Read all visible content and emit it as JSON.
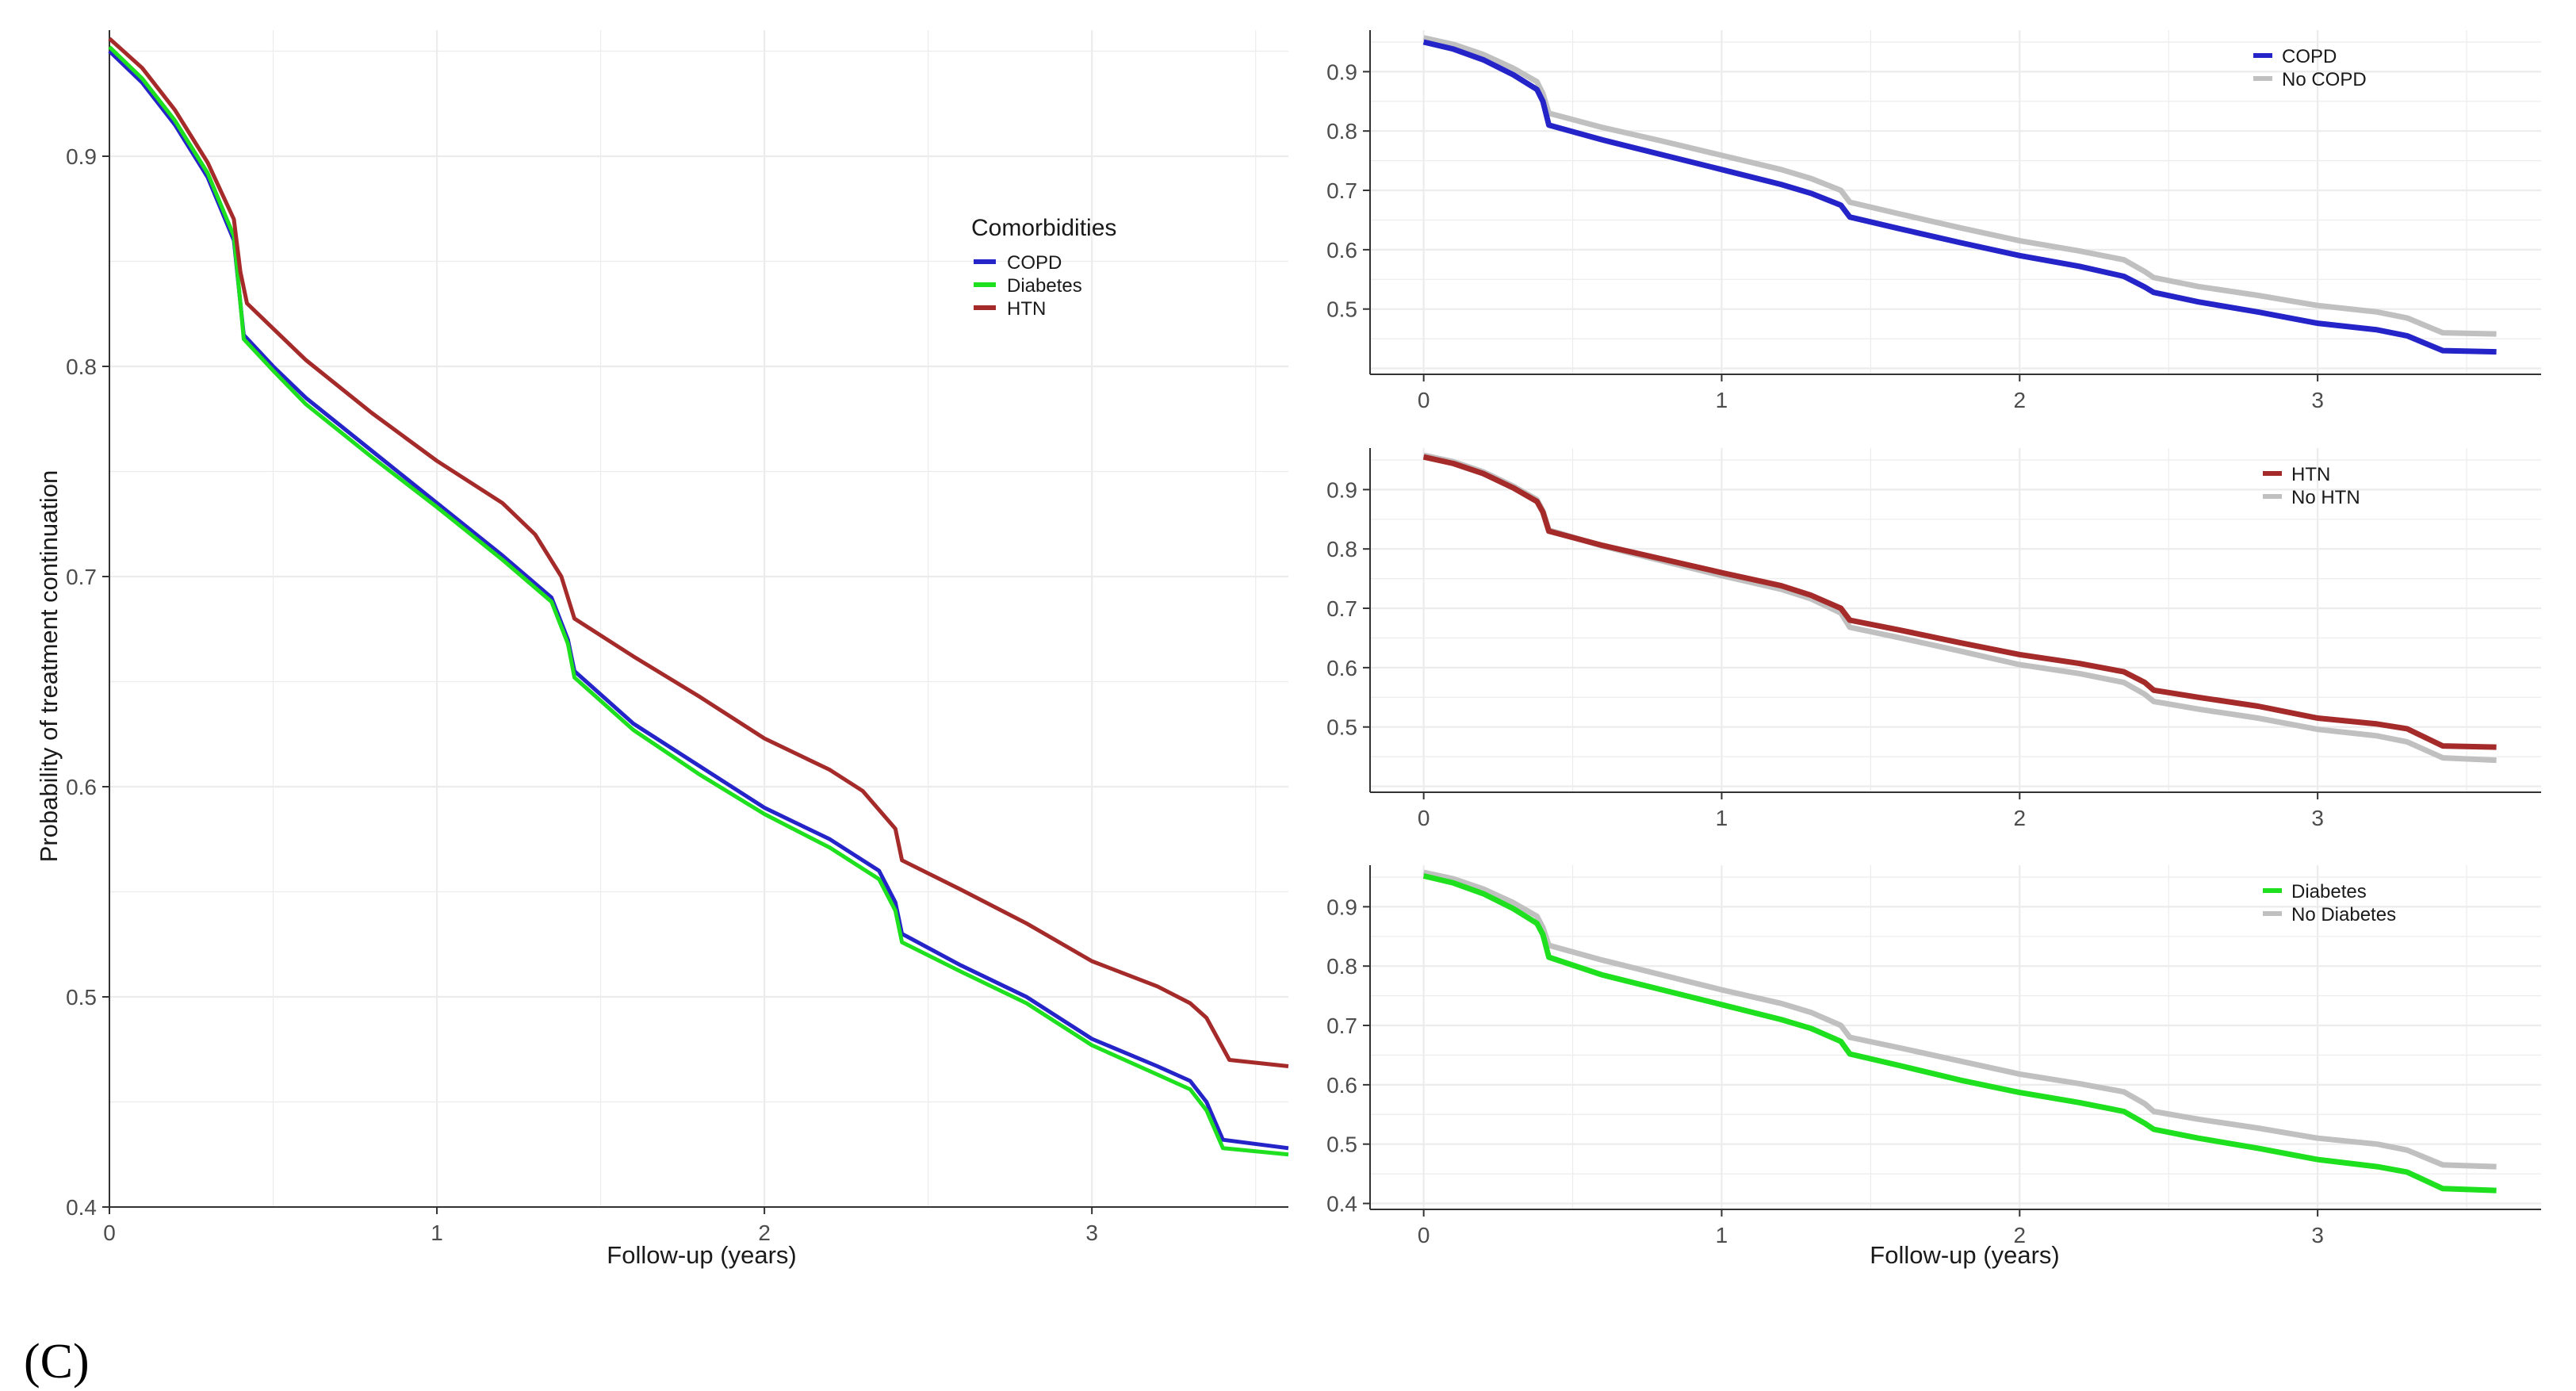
{
  "figure_label": "(C)",
  "colors": {
    "COPD": "#2424c8",
    "Diabetes": "#1fe01f",
    "HTN": "#a52a2a",
    "reference": "#c0c0c0",
    "grid": "#ececec",
    "axis": "#333333"
  },
  "chart_data": [
    {
      "type": "line",
      "panel": "main",
      "title": "",
      "xlabel": "Follow-up (years)",
      "ylabel": "Probability of treatment continuation",
      "xlim": [
        0,
        3.6
      ],
      "ylim": [
        0.4,
        0.96
      ],
      "xticks": [
        0,
        1,
        2,
        3
      ],
      "yticks": [
        0.4,
        0.5,
        0.6,
        0.7,
        0.8,
        0.9
      ],
      "grid": true,
      "legend_title": "Comorbidities",
      "legend_position": "top-right",
      "series": [
        {
          "name": "COPD",
          "color_key": "COPD",
          "x": [
            0,
            0.1,
            0.2,
            0.3,
            0.38,
            0.4,
            0.41,
            0.5,
            0.6,
            0.8,
            1.0,
            1.2,
            1.35,
            1.4,
            1.42,
            1.6,
            1.8,
            2.0,
            2.2,
            2.35,
            2.4,
            2.42,
            2.6,
            2.8,
            3.0,
            3.2,
            3.3,
            3.35,
            3.4,
            3.6
          ],
          "y": [
            0.95,
            0.935,
            0.915,
            0.89,
            0.86,
            0.83,
            0.815,
            0.8,
            0.785,
            0.76,
            0.735,
            0.71,
            0.69,
            0.67,
            0.655,
            0.63,
            0.61,
            0.59,
            0.575,
            0.56,
            0.545,
            0.53,
            0.515,
            0.5,
            0.48,
            0.467,
            0.46,
            0.45,
            0.432,
            0.428
          ]
        },
        {
          "name": "Diabetes",
          "color_key": "Diabetes",
          "x": [
            0,
            0.1,
            0.2,
            0.3,
            0.38,
            0.4,
            0.41,
            0.5,
            0.6,
            0.8,
            1.0,
            1.2,
            1.35,
            1.4,
            1.42,
            1.6,
            1.8,
            2.0,
            2.2,
            2.35,
            2.4,
            2.42,
            2.6,
            2.8,
            3.0,
            3.2,
            3.3,
            3.35,
            3.4,
            3.6
          ],
          "y": [
            0.952,
            0.937,
            0.917,
            0.892,
            0.862,
            0.83,
            0.813,
            0.798,
            0.782,
            0.757,
            0.733,
            0.708,
            0.688,
            0.668,
            0.652,
            0.627,
            0.606,
            0.587,
            0.571,
            0.556,
            0.541,
            0.526,
            0.512,
            0.497,
            0.477,
            0.463,
            0.456,
            0.446,
            0.428,
            0.425
          ]
        },
        {
          "name": "HTN",
          "color_key": "HTN",
          "x": [
            0,
            0.1,
            0.2,
            0.3,
            0.38,
            0.4,
            0.42,
            0.5,
            0.6,
            0.8,
            1.0,
            1.2,
            1.3,
            1.38,
            1.42,
            1.6,
            1.8,
            2.0,
            2.2,
            2.3,
            2.4,
            2.42,
            2.6,
            2.8,
            3.0,
            3.2,
            3.3,
            3.35,
            3.42,
            3.6
          ],
          "y": [
            0.956,
            0.942,
            0.922,
            0.897,
            0.87,
            0.845,
            0.83,
            0.818,
            0.803,
            0.778,
            0.755,
            0.735,
            0.72,
            0.7,
            0.68,
            0.662,
            0.643,
            0.623,
            0.608,
            0.598,
            0.58,
            0.565,
            0.551,
            0.535,
            0.517,
            0.505,
            0.497,
            0.49,
            0.47,
            0.467
          ]
        }
      ]
    },
    {
      "type": "line",
      "panel": "COPD",
      "title": "",
      "xlabel": "",
      "ylabel": "",
      "xlim": [
        -0.18,
        3.75
      ],
      "ylim": [
        0.39,
        0.97
      ],
      "xticks": [
        0,
        1,
        2,
        3
      ],
      "yticks": [
        0.5,
        0.6,
        0.7,
        0.8,
        0.9
      ],
      "grid": true,
      "legend_position": "top-right",
      "series": [
        {
          "name": "COPD",
          "color_key": "COPD",
          "x": [
            0,
            0.1,
            0.2,
            0.3,
            0.38,
            0.4,
            0.42,
            0.6,
            0.8,
            1.0,
            1.2,
            1.3,
            1.4,
            1.43,
            1.6,
            1.8,
            2.0,
            2.2,
            2.35,
            2.42,
            2.45,
            2.6,
            2.8,
            3.0,
            3.2,
            3.3,
            3.42,
            3.6
          ],
          "y": [
            0.95,
            0.938,
            0.92,
            0.895,
            0.87,
            0.85,
            0.81,
            0.785,
            0.76,
            0.735,
            0.71,
            0.695,
            0.675,
            0.655,
            0.635,
            0.612,
            0.59,
            0.572,
            0.555,
            0.537,
            0.528,
            0.512,
            0.495,
            0.476,
            0.465,
            0.455,
            0.43,
            0.428
          ]
        },
        {
          "name": "No COPD",
          "color_key": "reference",
          "x": [
            0,
            0.1,
            0.2,
            0.3,
            0.38,
            0.4,
            0.42,
            0.6,
            0.8,
            1.0,
            1.2,
            1.3,
            1.4,
            1.43,
            1.6,
            1.8,
            2.0,
            2.2,
            2.35,
            2.42,
            2.45,
            2.6,
            2.8,
            3.0,
            3.2,
            3.3,
            3.42,
            3.6
          ],
          "y": [
            0.957,
            0.946,
            0.929,
            0.906,
            0.883,
            0.863,
            0.83,
            0.806,
            0.783,
            0.759,
            0.735,
            0.72,
            0.7,
            0.68,
            0.66,
            0.637,
            0.615,
            0.598,
            0.583,
            0.563,
            0.553,
            0.538,
            0.523,
            0.506,
            0.495,
            0.485,
            0.46,
            0.458
          ]
        }
      ]
    },
    {
      "type": "line",
      "panel": "HTN",
      "title": "",
      "xlabel": "",
      "ylabel": "",
      "xlim": [
        -0.18,
        3.75
      ],
      "ylim": [
        0.39,
        0.97
      ],
      "xticks": [
        0,
        1,
        2,
        3
      ],
      "yticks": [
        0.5,
        0.6,
        0.7,
        0.8,
        0.9
      ],
      "grid": true,
      "legend_position": "top-right",
      "series": [
        {
          "name": "HTN",
          "color_key": "HTN",
          "x": [
            0,
            0.1,
            0.2,
            0.3,
            0.38,
            0.4,
            0.42,
            0.6,
            0.8,
            1.0,
            1.2,
            1.3,
            1.4,
            1.43,
            1.6,
            1.8,
            2.0,
            2.2,
            2.35,
            2.42,
            2.45,
            2.6,
            2.8,
            3.0,
            3.2,
            3.3,
            3.42,
            3.6
          ],
          "y": [
            0.955,
            0.944,
            0.927,
            0.903,
            0.88,
            0.862,
            0.83,
            0.806,
            0.783,
            0.76,
            0.738,
            0.722,
            0.7,
            0.68,
            0.663,
            0.642,
            0.622,
            0.607,
            0.593,
            0.575,
            0.562,
            0.55,
            0.535,
            0.515,
            0.505,
            0.497,
            0.468,
            0.466
          ]
        },
        {
          "name": "No HTN",
          "color_key": "reference",
          "x": [
            0,
            0.1,
            0.2,
            0.3,
            0.38,
            0.4,
            0.42,
            0.6,
            0.8,
            1.0,
            1.2,
            1.3,
            1.4,
            1.43,
            1.6,
            1.8,
            2.0,
            2.2,
            2.35,
            2.42,
            2.45,
            2.6,
            2.8,
            3.0,
            3.2,
            3.3,
            3.42,
            3.6
          ],
          "y": [
            0.958,
            0.947,
            0.93,
            0.906,
            0.883,
            0.864,
            0.832,
            0.805,
            0.78,
            0.755,
            0.732,
            0.716,
            0.692,
            0.668,
            0.65,
            0.628,
            0.605,
            0.59,
            0.575,
            0.555,
            0.543,
            0.53,
            0.515,
            0.496,
            0.485,
            0.475,
            0.448,
            0.444
          ]
        }
      ]
    },
    {
      "type": "line",
      "panel": "Diabetes",
      "title": "",
      "xlabel": "Follow-up (years)",
      "ylabel": "",
      "xlim": [
        -0.18,
        3.75
      ],
      "ylim": [
        0.39,
        0.97
      ],
      "xticks": [
        0,
        1,
        2,
        3
      ],
      "yticks": [
        0.4,
        0.5,
        0.6,
        0.7,
        0.8,
        0.9
      ],
      "grid": true,
      "legend_position": "top-right",
      "series": [
        {
          "name": "Diabetes",
          "color_key": "Diabetes",
          "x": [
            0,
            0.1,
            0.2,
            0.3,
            0.38,
            0.4,
            0.42,
            0.6,
            0.8,
            1.0,
            1.2,
            1.3,
            1.4,
            1.43,
            1.6,
            1.8,
            2.0,
            2.2,
            2.35,
            2.42,
            2.45,
            2.6,
            2.8,
            3.0,
            3.2,
            3.3,
            3.42,
            3.6
          ],
          "y": [
            0.952,
            0.94,
            0.922,
            0.897,
            0.872,
            0.853,
            0.815,
            0.785,
            0.76,
            0.735,
            0.71,
            0.695,
            0.673,
            0.652,
            0.632,
            0.608,
            0.587,
            0.57,
            0.555,
            0.535,
            0.525,
            0.51,
            0.493,
            0.474,
            0.462,
            0.453,
            0.425,
            0.422
          ]
        },
        {
          "name": "No Diabetes",
          "color_key": "reference",
          "x": [
            0,
            0.1,
            0.2,
            0.3,
            0.38,
            0.4,
            0.42,
            0.6,
            0.8,
            1.0,
            1.2,
            1.3,
            1.4,
            1.43,
            1.6,
            1.8,
            2.0,
            2.2,
            2.35,
            2.42,
            2.45,
            2.6,
            2.8,
            3.0,
            3.2,
            3.3,
            3.42,
            3.6
          ],
          "y": [
            0.958,
            0.947,
            0.93,
            0.907,
            0.884,
            0.865,
            0.835,
            0.81,
            0.785,
            0.76,
            0.737,
            0.722,
            0.7,
            0.68,
            0.662,
            0.64,
            0.618,
            0.602,
            0.588,
            0.568,
            0.555,
            0.542,
            0.527,
            0.51,
            0.5,
            0.49,
            0.465,
            0.462
          ]
        }
      ]
    }
  ]
}
